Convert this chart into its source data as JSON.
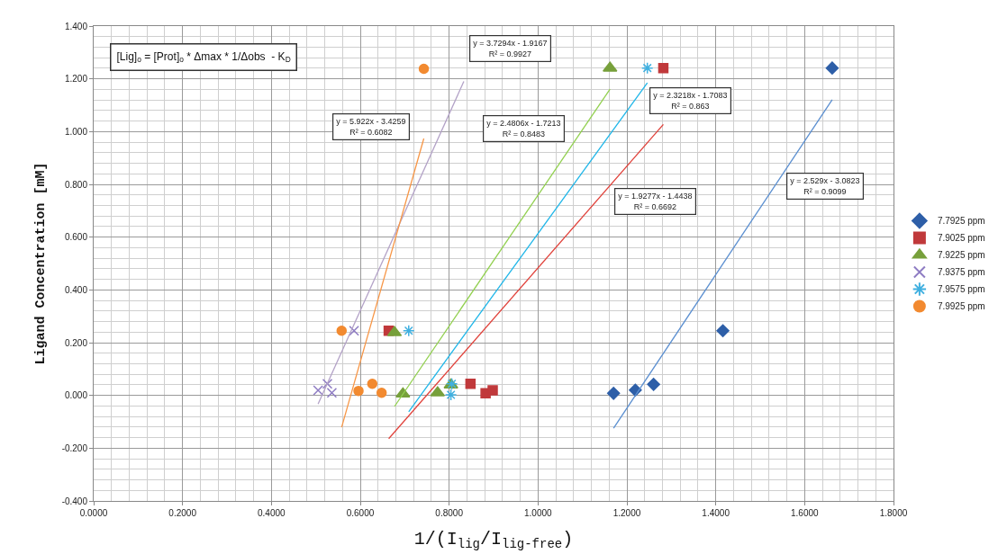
{
  "chart_data": {
    "type": "scatter",
    "xlabel": "1/(I$_{lig}$/I$_{lig-free}$)",
    "ylabel": "Ligand Concentration [mM]",
    "xlim": [
      0,
      1.8
    ],
    "ylim": [
      -0.4,
      1.4
    ],
    "xticks": [
      {
        "value": 0,
        "label": "0.0000"
      },
      {
        "value": 0.2,
        "label": "0.2000"
      },
      {
        "value": 0.4,
        "label": "0.4000"
      },
      {
        "value": 0.6,
        "label": "0.6000"
      },
      {
        "value": 0.8,
        "label": "0.8000"
      },
      {
        "value": 1.0,
        "label": "1.0000"
      },
      {
        "value": 1.2,
        "label": "1.2000"
      },
      {
        "value": 1.4,
        "label": "1.4000"
      },
      {
        "value": 1.6,
        "label": "1.6000"
      },
      {
        "value": 1.8,
        "label": "1.8000"
      }
    ],
    "yticks": [
      {
        "value": -0.4,
        "label": "-0.400"
      },
      {
        "value": -0.2,
        "label": "-0.200"
      },
      {
        "value": 0,
        "label": "0.000"
      },
      {
        "value": 0.2,
        "label": "0.200"
      },
      {
        "value": 0.4,
        "label": "0.400"
      },
      {
        "value": 0.6,
        "label": "0.600"
      },
      {
        "value": 0.8,
        "label": "0.800"
      },
      {
        "value": 1.0,
        "label": "1.000"
      },
      {
        "value": 1.2,
        "label": "1.200"
      },
      {
        "value": 1.4,
        "label": "1.400"
      }
    ],
    "grid": true,
    "legend": "right",
    "series": [
      {
        "name": "7.7925 ppm",
        "color": "#2e5fa8",
        "marker": "diamond",
        "x": [
          1.17,
          1.219,
          1.26,
          1.416,
          1.662
        ],
        "values": [
          0.008,
          0.02,
          0.042,
          0.245,
          1.241
        ]
      },
      {
        "name": "7.9025 ppm",
        "color": "#c0393b",
        "marker": "square",
        "x": [
          0.664,
          0.848,
          0.882,
          0.898,
          1.282
        ],
        "values": [
          0.245,
          0.044,
          0.008,
          0.019,
          1.241
        ]
      },
      {
        "name": "7.9225 ppm",
        "color": "#77a03b",
        "marker": "triangle",
        "x": [
          0.677,
          0.696,
          0.774,
          0.804,
          1.162
        ],
        "values": [
          0.238,
          0.006,
          0.01,
          0.04,
          1.241
        ]
      },
      {
        "name": "7.9375 ppm",
        "color": "#8e7cc3",
        "marker": "cross",
        "x": [
          0.586,
          0.505,
          0.526,
          0.536
        ],
        "values": [
          0.245,
          0.019,
          0.044,
          0.01
        ]
      },
      {
        "name": "7.9575 ppm",
        "color": "#40b0e0",
        "marker": "cross",
        "x": [
          0.709,
          0.806,
          0.804,
          1.246
        ],
        "values": [
          0.245,
          0.044,
          0.002,
          1.241
        ]
      },
      {
        "name": "7.9925 ppm",
        "color": "#f28a30",
        "marker": "circle",
        "x": [
          0.558,
          0.596,
          0.627,
          0.648,
          0.743
        ],
        "values": [
          0.245,
          0.017,
          0.044,
          0.01,
          1.238
        ]
      },
      {
        "type": "line",
        "color": "#5b8fd0",
        "x": [
          1.17,
          1.662
        ],
        "values": [
          -0.124,
          1.121
        ]
      },
      {
        "type": "line",
        "color": "#e0413a",
        "x": [
          0.664,
          1.282
        ],
        "values": [
          -0.164,
          1.027
        ]
      },
      {
        "type": "line",
        "color": "#92d050",
        "x": [
          0.677,
          1.162
        ],
        "values": [
          -0.042,
          1.161
        ]
      },
      {
        "type": "line",
        "color": "#b3a2c7",
        "x": [
          0.505,
          0.833
        ],
        "values": [
          -0.033,
          1.19
        ]
      },
      {
        "type": "line",
        "color": "#1fb6e8",
        "x": [
          0.709,
          1.246
        ],
        "values": [
          -0.062,
          1.185
        ]
      },
      {
        "type": "line",
        "color": "#f79646",
        "x": [
          0.558,
          0.743
        ],
        "values": [
          -0.121,
          0.974
        ]
      }
    ],
    "annotations": [
      "[Lig]$_{o}$ = [Prot]$_{o}$ * Δmax * 1/Δobs  - K$_{D}$",
      "y = 5.922x - 3.4259\nR² = 0.6082",
      "y = 3.7294x - 1.9167\nR² = 0.9927",
      "y = 2.4806x - 1.7213\nR² = 0.8483",
      "y = 2.3218x - 1.7083\nR² = 0.863",
      "y = 1.9277x - 1.4438\nR² = 0.6692",
      "y = 2.529x - 3.0823\nR² = 0.9099"
    ]
  }
}
